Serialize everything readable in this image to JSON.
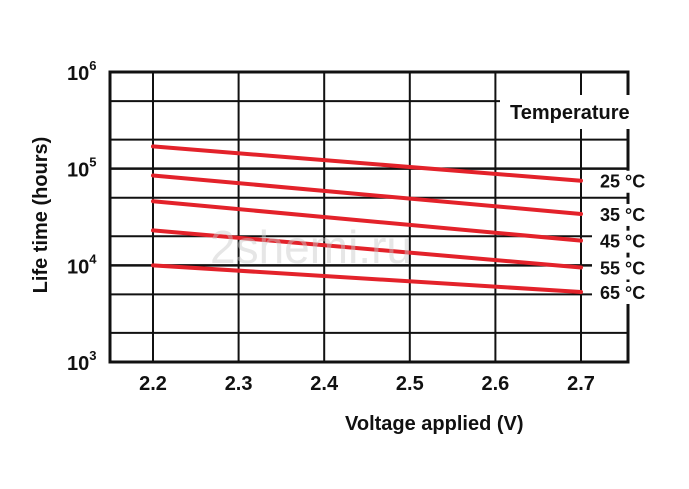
{
  "chart_data": {
    "type": "line",
    "xlabel": "Voltage applied (V)",
    "ylabel": "Life time (hours)",
    "legend_title": "Temperature",
    "xlim": [
      2.2,
      2.7
    ],
    "ylim": [
      1000,
      1000000
    ],
    "y_scale": "log",
    "grid": true,
    "x_ticks": [
      "2.2",
      "2.3",
      "2.4",
      "2.5",
      "2.6",
      "2.7"
    ],
    "y_ticks": [
      {
        "base": "10",
        "exp": "3"
      },
      {
        "base": "10",
        "exp": "4"
      },
      {
        "base": "10",
        "exp": "5"
      },
      {
        "base": "10",
        "exp": "6"
      }
    ],
    "x": [
      2.2,
      2.7
    ],
    "line_color": "#e3222a",
    "series": [
      {
        "name": "25 °C",
        "values": [
          170000,
          75000
        ]
      },
      {
        "name": "35 °C",
        "values": [
          85000,
          34000
        ]
      },
      {
        "name": "45 °C",
        "values": [
          46000,
          18000
        ]
      },
      {
        "name": "55 °C",
        "values": [
          23000,
          9500
        ]
      },
      {
        "name": "65 °C",
        "values": [
          10000,
          5300
        ]
      }
    ],
    "watermark": "2shemi.ru"
  }
}
